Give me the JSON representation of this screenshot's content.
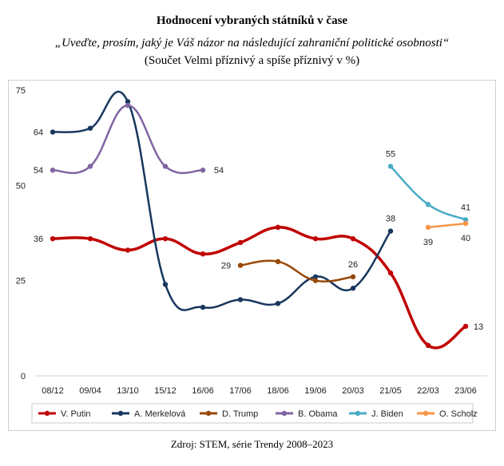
{
  "header": {
    "title": "Hodnocení vybraných státníků v čase",
    "subtitle": "„Uveďte, prosím, jaký je Váš názor na následující zahraniční politické osobnosti“",
    "subtitle2": "(Součet Velmi příznivý a spíše příznivý v %)"
  },
  "footer": {
    "source": "Zdroj: STEM, série Trendy 2008–2023"
  },
  "chart_data": {
    "type": "line",
    "categories": [
      "08/12",
      "09/04",
      "13/10",
      "15/12",
      "16/06",
      "17/06",
      "18/06",
      "19/06",
      "20/03",
      "21/05",
      "22/03",
      "23/06"
    ],
    "ylim": [
      0,
      75
    ],
    "yticks": [
      0,
      25,
      50,
      75
    ],
    "grid": false,
    "legend_position": "bottom",
    "series": [
      {
        "name": "V. Putin",
        "color": "#c00000",
        "values": [
          36,
          36,
          33,
          36,
          32,
          35,
          39,
          36,
          36,
          27,
          8,
          13
        ],
        "labels": {
          "0": "36",
          "11": "13"
        }
      },
      {
        "name": "A. Merkelová",
        "color": "#17375e",
        "values": [
          64,
          65,
          72,
          24,
          18,
          20,
          19,
          26,
          23,
          38,
          null,
          null
        ],
        "labels": {
          "0": "64",
          "9": "38"
        }
      },
      {
        "name": "D. Trump",
        "color": "#984807",
        "values": [
          null,
          null,
          null,
          null,
          null,
          29,
          30,
          25,
          26,
          null,
          null,
          null
        ],
        "labels": {
          "5": "29",
          "8": "26"
        }
      },
      {
        "name": "B. Obama",
        "color": "#8064a2",
        "values": [
          54,
          55,
          71,
          55,
          54,
          null,
          null,
          null,
          null,
          null,
          null,
          null
        ],
        "labels": {
          "0": "54",
          "4": "54"
        }
      },
      {
        "name": "J. Biden",
        "color": "#4bacc6",
        "values": [
          null,
          null,
          null,
          null,
          null,
          null,
          null,
          null,
          null,
          55,
          45,
          41
        ],
        "labels": {
          "9": "55",
          "11": "41"
        }
      },
      {
        "name": "O. Scholz",
        "color": "#f79646",
        "values": [
          null,
          null,
          null,
          null,
          null,
          null,
          null,
          null,
          null,
          null,
          39,
          40
        ],
        "labels": {
          "10": "39",
          "11": "40"
        }
      }
    ]
  }
}
